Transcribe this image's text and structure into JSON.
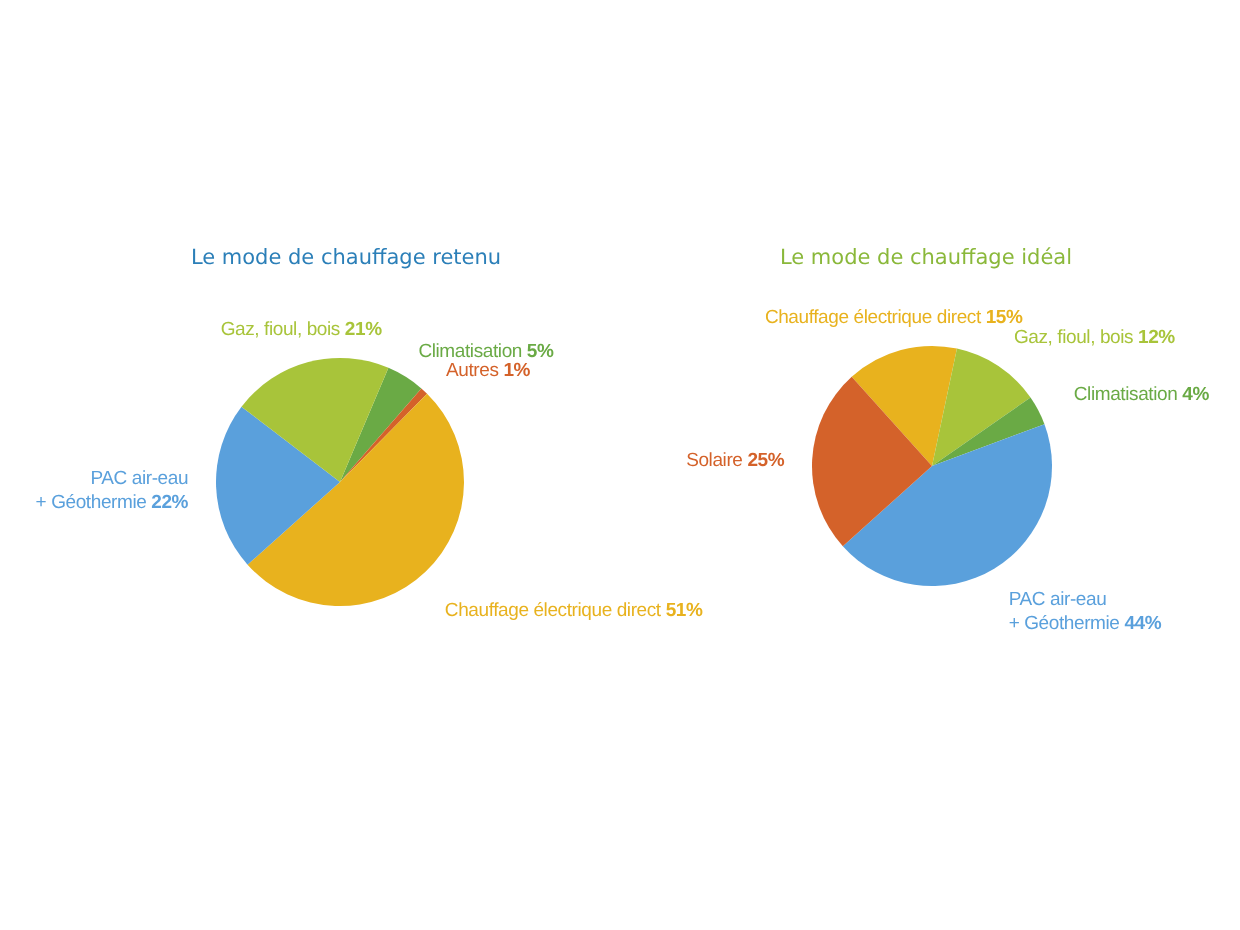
{
  "chart_data": [
    {
      "type": "pie",
      "title": "Le mode de chauffage retenu",
      "categories": [
        "Climatisation",
        "Autres",
        "Chauffage électrique direct",
        "PAC air-eau\n+ Géothermie",
        "Gaz, fioul, bois"
      ],
      "values": [
        5,
        1,
        51,
        22,
        21
      ],
      "value_labels": [
        "5%",
        "1%",
        "51%",
        "22%",
        "21%"
      ],
      "colors": [
        "#6aaa45",
        "#d4622a",
        "#e8b21e",
        "#5aa0dc",
        "#a8c43a"
      ]
    },
    {
      "type": "pie",
      "title": "Le mode de chauffage idéal",
      "categories": [
        "Chauffage électrique direct",
        "Gaz, fioul, bois",
        "Climatisation",
        "PAC air-eau\n+ Géothermie",
        "Solaire"
      ],
      "values": [
        15,
        12,
        4,
        44,
        25
      ],
      "value_labels": [
        "15%",
        "12%",
        "4%",
        "44%",
        "25%"
      ],
      "colors": [
        "#e8b21e",
        "#a8c43a",
        "#6aaa45",
        "#5aa0dc",
        "#d4622a"
      ]
    }
  ]
}
